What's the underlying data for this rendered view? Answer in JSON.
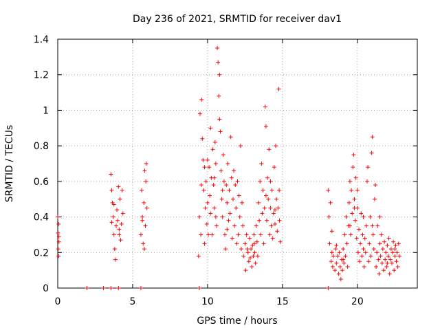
{
  "colors": {
    "series": "#ff0000"
  },
  "chart_data": {
    "type": "scatter",
    "title": "Day 236 of 2021, SRMTID for receiver dav1",
    "xlabel": "GPS time / hours",
    "ylabel": "SRMTID / TECUs",
    "xlim": [
      0,
      24
    ],
    "ylim": [
      0,
      1.4
    ],
    "grid": true,
    "marker": "+",
    "x_ticks": [
      0,
      5,
      10,
      15,
      20
    ],
    "x_tick_labels": [
      "0",
      "5",
      "10",
      "15",
      "20"
    ],
    "y_ticks": [
      0,
      0.2,
      0.4,
      0.6,
      0.8,
      1.0,
      1.2,
      1.4
    ],
    "y_tick_labels": [
      "0",
      "0.2",
      "0.4",
      "0.6",
      "0.8",
      "1",
      "1.2",
      "1.4"
    ],
    "series": [
      {
        "name": "SRMTID",
        "points": [
          [
            0.0,
            0.4
          ],
          [
            0.02,
            0.31
          ],
          [
            0.03,
            0.22
          ],
          [
            0.05,
            0.18
          ],
          [
            0.05,
            0.36
          ],
          [
            0.08,
            0.29
          ],
          [
            0.08,
            0.26
          ],
          [
            1.95,
            0.0
          ],
          [
            3.05,
            0.0
          ],
          [
            3.55,
            0.0
          ],
          [
            4.05,
            0.0
          ],
          [
            5.55,
            0.0
          ],
          [
            9.45,
            0.0
          ],
          [
            18.05,
            0.0
          ],
          [
            3.55,
            0.64
          ],
          [
            3.6,
            0.55
          ],
          [
            3.65,
            0.48
          ],
          [
            3.7,
            0.4
          ],
          [
            3.75,
            0.3
          ],
          [
            3.8,
            0.22
          ],
          [
            3.85,
            0.16
          ],
          [
            3.9,
            0.35
          ],
          [
            3.95,
            0.44
          ],
          [
            4.0,
            0.38
          ],
          [
            4.05,
            0.57
          ],
          [
            4.1,
            0.3
          ],
          [
            4.15,
            0.5
          ],
          [
            4.2,
            0.27
          ],
          [
            4.25,
            0.36
          ],
          [
            4.3,
            0.55
          ],
          [
            4.35,
            0.42
          ],
          [
            3.6,
            0.37
          ],
          [
            3.75,
            0.47
          ],
          [
            4.1,
            0.33
          ],
          [
            5.55,
            0.3
          ],
          [
            5.6,
            0.55
          ],
          [
            5.65,
            0.4
          ],
          [
            5.7,
            0.25
          ],
          [
            5.75,
            0.48
          ],
          [
            5.8,
            0.66
          ],
          [
            5.85,
            0.35
          ],
          [
            5.9,
            0.7
          ],
          [
            5.95,
            0.45
          ],
          [
            5.65,
            0.38
          ],
          [
            5.78,
            0.22
          ],
          [
            5.88,
            0.6
          ],
          [
            9.4,
            0.18
          ],
          [
            9.45,
            0.4
          ],
          [
            9.5,
            0.98
          ],
          [
            9.55,
            0.3
          ],
          [
            9.6,
            1.06
          ],
          [
            9.65,
            0.84
          ],
          [
            9.7,
            0.72
          ],
          [
            9.75,
            0.55
          ],
          [
            9.8,
            0.25
          ],
          [
            9.85,
            0.45
          ],
          [
            9.9,
            0.6
          ],
          [
            9.95,
            0.36
          ],
          [
            10.0,
            0.48
          ],
          [
            10.05,
            0.3
          ],
          [
            10.1,
            0.68
          ],
          [
            10.15,
            0.52
          ],
          [
            10.2,
            0.42
          ],
          [
            10.25,
            0.62
          ],
          [
            10.3,
            0.3
          ],
          [
            10.35,
            0.78
          ],
          [
            10.4,
            0.58
          ],
          [
            10.45,
            0.45
          ],
          [
            10.5,
            0.82
          ],
          [
            10.55,
            0.7
          ],
          [
            10.6,
            0.35
          ],
          [
            10.65,
            1.35
          ],
          [
            10.7,
            1.27
          ],
          [
            10.75,
            1.08
          ],
          [
            10.8,
            0.95
          ],
          [
            10.85,
            0.88
          ],
          [
            10.9,
            0.66
          ],
          [
            10.95,
            0.5
          ],
          [
            11.0,
            0.4
          ],
          [
            11.05,
            0.75
          ],
          [
            11.1,
            0.6
          ],
          [
            11.15,
            0.3
          ],
          [
            11.2,
            0.22
          ],
          [
            11.25,
            0.58
          ],
          [
            11.3,
            0.48
          ],
          [
            11.35,
            0.7
          ],
          [
            11.4,
            0.38
          ],
          [
            11.45,
            0.55
          ],
          [
            11.5,
            0.42
          ],
          [
            11.55,
            0.85
          ],
          [
            11.6,
            0.62
          ],
          [
            11.65,
            0.28
          ],
          [
            11.7,
            0.5
          ],
          [
            11.75,
            0.66
          ],
          [
            11.8,
            0.35
          ],
          [
            11.85,
            0.58
          ],
          [
            11.9,
            0.45
          ],
          [
            11.95,
            0.25
          ],
          [
            12.0,
            0.6
          ],
          [
            12.05,
            0.3
          ],
          [
            12.1,
            0.52
          ],
          [
            12.15,
            0.4
          ],
          [
            12.2,
            0.8
          ],
          [
            12.25,
            0.22
          ],
          [
            12.3,
            0.48
          ],
          [
            12.35,
            0.35
          ],
          [
            10.2,
            0.9
          ],
          [
            10.45,
            0.62
          ],
          [
            10.8,
            1.2
          ],
          [
            10.55,
            0.4
          ],
          [
            9.58,
            0.58
          ],
          [
            9.8,
            0.68
          ],
          [
            10.0,
            0.72
          ],
          [
            11.0,
            0.55
          ],
          [
            11.3,
            0.33
          ],
          [
            12.4,
            0.18
          ],
          [
            12.5,
            0.25
          ],
          [
            12.55,
            0.1
          ],
          [
            12.6,
            0.3
          ],
          [
            12.7,
            0.2
          ],
          [
            12.75,
            0.15
          ],
          [
            12.8,
            0.28
          ],
          [
            12.9,
            0.22
          ],
          [
            12.95,
            0.12
          ],
          [
            13.0,
            0.24
          ],
          [
            13.05,
            0.18
          ],
          [
            13.1,
            0.3
          ],
          [
            13.15,
            0.2
          ],
          [
            13.2,
            0.14
          ],
          [
            13.25,
            0.35
          ],
          [
            13.3,
            0.26
          ],
          [
            13.35,
            0.18
          ],
          [
            12.65,
            0.22
          ],
          [
            12.85,
            0.17
          ],
          [
            13.12,
            0.25
          ],
          [
            13.4,
            0.48
          ],
          [
            13.45,
            0.38
          ],
          [
            13.5,
            0.6
          ],
          [
            13.55,
            0.3
          ],
          [
            13.6,
            0.7
          ],
          [
            13.65,
            0.42
          ],
          [
            13.7,
            0.55
          ],
          [
            13.75,
            0.25
          ],
          [
            13.8,
            0.45
          ],
          [
            13.85,
            1.02
          ],
          [
            13.9,
            0.91
          ],
          [
            13.95,
            0.38
          ],
          [
            14.0,
            0.62
          ],
          [
            14.05,
            0.5
          ],
          [
            14.1,
            0.78
          ],
          [
            14.15,
            0.3
          ],
          [
            14.2,
            0.45
          ],
          [
            14.25,
            0.35
          ],
          [
            14.3,
            0.55
          ],
          [
            14.35,
            0.28
          ],
          [
            14.4,
            0.42
          ],
          [
            14.45,
            0.68
          ],
          [
            14.5,
            0.36
          ],
          [
            14.55,
            0.8
          ],
          [
            14.6,
            0.5
          ],
          [
            14.65,
            0.32
          ],
          [
            14.7,
            0.45
          ],
          [
            14.75,
            1.12
          ],
          [
            14.8,
            0.38
          ],
          [
            14.85,
            0.26
          ],
          [
            13.9,
            0.52
          ],
          [
            14.2,
            0.6
          ],
          [
            14.5,
            0.44
          ],
          [
            14.78,
            0.55
          ],
          [
            18.05,
            0.55
          ],
          [
            18.1,
            0.4
          ],
          [
            18.15,
            0.25
          ],
          [
            18.2,
            0.48
          ],
          [
            18.25,
            0.15
          ],
          [
            18.3,
            0.2
          ],
          [
            18.35,
            0.12
          ],
          [
            18.4,
            0.18
          ],
          [
            18.5,
            0.1
          ],
          [
            18.55,
            0.22
          ],
          [
            18.6,
            0.14
          ],
          [
            18.7,
            0.18
          ],
          [
            18.75,
            0.08
          ],
          [
            18.8,
            0.2
          ],
          [
            18.85,
            0.12
          ],
          [
            18.9,
            0.05
          ],
          [
            18.95,
            0.16
          ],
          [
            19.0,
            0.1
          ],
          [
            19.05,
            0.22
          ],
          [
            19.1,
            0.14
          ],
          [
            19.15,
            0.3
          ],
          [
            19.2,
            0.18
          ],
          [
            19.25,
            0.4
          ],
          [
            19.3,
            0.25
          ],
          [
            19.35,
            0.12
          ],
          [
            19.4,
            0.35
          ],
          [
            19.45,
            0.48
          ],
          [
            19.5,
            0.6
          ],
          [
            19.55,
            0.3
          ],
          [
            19.6,
            0.55
          ],
          [
            19.65,
            0.42
          ],
          [
            19.7,
            0.68
          ],
          [
            19.75,
            0.75
          ],
          [
            19.8,
            0.5
          ],
          [
            19.85,
            0.38
          ],
          [
            19.9,
            0.62
          ],
          [
            19.95,
            0.28
          ],
          [
            20.0,
            0.45
          ],
          [
            20.05,
            0.2
          ],
          [
            20.1,
            0.33
          ],
          [
            20.15,
            0.15
          ],
          [
            20.2,
            0.25
          ],
          [
            20.25,
            0.42
          ],
          [
            20.3,
            0.18
          ],
          [
            20.35,
            0.3
          ],
          [
            20.4,
            0.22
          ],
          [
            20.45,
            0.12
          ],
          [
            20.5,
            0.28
          ],
          [
            20.55,
            0.2
          ],
          [
            20.6,
            0.35
          ],
          [
            20.65,
            0.6
          ],
          [
            20.7,
            0.68
          ],
          [
            20.75,
            0.15
          ],
          [
            20.8,
            0.25
          ],
          [
            20.85,
            0.4
          ],
          [
            20.9,
            0.18
          ],
          [
            20.95,
            0.76
          ],
          [
            21.0,
            0.85
          ],
          [
            21.05,
            0.3
          ],
          [
            21.1,
            0.22
          ],
          [
            21.15,
            0.5
          ],
          [
            21.2,
            0.58
          ],
          [
            21.25,
            0.12
          ],
          [
            21.3,
            0.2
          ],
          [
            21.35,
            0.35
          ],
          [
            21.4,
            0.16
          ],
          [
            21.45,
            0.08
          ],
          [
            21.5,
            0.25
          ],
          [
            21.55,
            0.18
          ],
          [
            21.6,
            0.3
          ],
          [
            21.65,
            0.14
          ],
          [
            21.7,
            0.22
          ],
          [
            21.75,
            0.1
          ],
          [
            21.8,
            0.26
          ],
          [
            21.85,
            0.16
          ],
          [
            21.9,
            0.2
          ],
          [
            21.95,
            0.12
          ],
          [
            22.0,
            0.24
          ],
          [
            22.05,
            0.18
          ],
          [
            22.1,
            0.28
          ],
          [
            22.15,
            0.08
          ],
          [
            22.2,
            0.16
          ],
          [
            22.25,
            0.22
          ],
          [
            22.3,
            0.14
          ],
          [
            22.35,
            0.2
          ],
          [
            22.4,
            0.26
          ],
          [
            22.45,
            0.1
          ],
          [
            22.5,
            0.18
          ],
          [
            22.55,
            0.24
          ],
          [
            22.6,
            0.15
          ],
          [
            22.65,
            0.2
          ],
          [
            22.7,
            0.12
          ],
          [
            22.75,
            0.25
          ],
          [
            22.8,
            0.18
          ],
          [
            18.6,
            0.24
          ],
          [
            19.05,
            0.16
          ],
          [
            19.5,
            0.35
          ],
          [
            20.0,
            0.55
          ],
          [
            20.4,
            0.4
          ],
          [
            21.0,
            0.35
          ],
          [
            21.5,
            0.4
          ],
          [
            22.0,
            0.14
          ],
          [
            22.5,
            0.22
          ],
          [
            18.3,
            0.32
          ],
          [
            19.8,
            0.45
          ]
        ]
      }
    ]
  }
}
